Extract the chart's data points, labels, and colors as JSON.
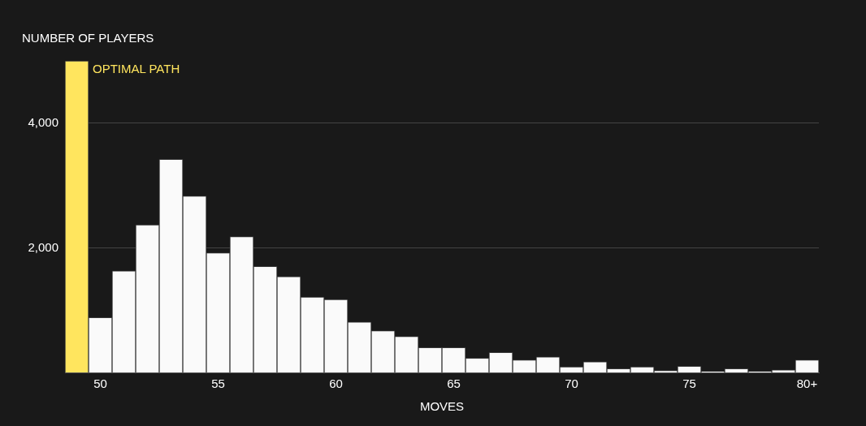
{
  "chart_data": {
    "type": "bar",
    "ylabel": "NUMBER OF PLAYERS",
    "xlabel": "MOVES",
    "categories": [
      null,
      "50",
      null,
      null,
      null,
      null,
      "55",
      null,
      null,
      null,
      null,
      "60",
      null,
      null,
      null,
      null,
      "65",
      null,
      null,
      null,
      null,
      "70",
      null,
      null,
      null,
      null,
      "75",
      null,
      null,
      null,
      null,
      "80+"
    ],
    "values": [
      5000,
      880,
      1630,
      2370,
      3420,
      2830,
      1920,
      2180,
      1700,
      1540,
      1210,
      1170,
      810,
      670,
      580,
      400,
      400,
      230,
      320,
      200,
      250,
      90,
      170,
      60,
      90,
      30,
      100,
      20,
      60,
      20,
      40,
      200
    ],
    "colors": [
      "#ffe55e",
      "#fafafa",
      "#fafafa",
      "#fafafa",
      "#fafafa",
      "#fafafa",
      "#fafafa",
      "#fafafa",
      "#fafafa",
      "#fafafa",
      "#fafafa",
      "#fafafa",
      "#fafafa",
      "#fafafa",
      "#fafafa",
      "#fafafa",
      "#fafafa",
      "#fafafa",
      "#fafafa",
      "#fafafa",
      "#fafafa",
      "#fafafa",
      "#fafafa",
      "#fafafa",
      "#fafafa",
      "#fafafa",
      "#fafafa",
      "#fafafa",
      "#fafafa",
      "#fafafa",
      "#fafafa",
      "#fafafa"
    ],
    "annotations": [
      "OPTIMAL PATH"
    ],
    "ylim": [
      0,
      5000
    ],
    "yticks": [
      {
        "value": 2000,
        "label": "2,000"
      },
      {
        "value": 4000,
        "label": "4,000"
      }
    ],
    "grid": "y"
  }
}
